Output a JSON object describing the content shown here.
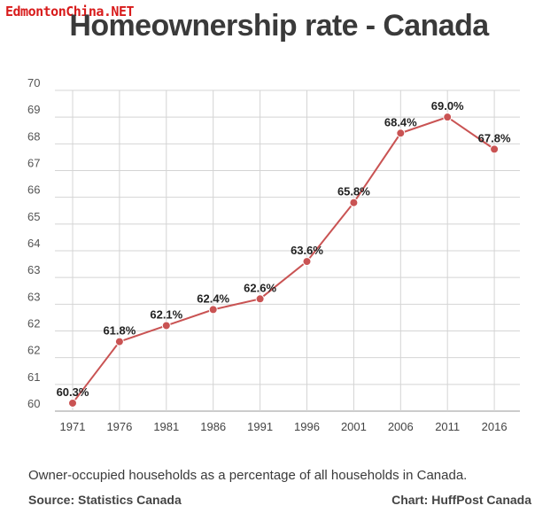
{
  "watermark": "EdmontonChina.NET",
  "chart_data": {
    "type": "line",
    "title": "Homeownership rate - Canada",
    "categories": [
      "1971",
      "1976",
      "1981",
      "1986",
      "1991",
      "1996",
      "2001",
      "2006",
      "2011",
      "2016"
    ],
    "values": [
      60.3,
      61.8,
      62.1,
      62.4,
      62.6,
      63.6,
      65.8,
      68.4,
      69.0,
      67.8
    ],
    "data_labels": [
      "60.3%",
      "61.8%",
      "62.1%",
      "62.4%",
      "62.6%",
      "63.6%",
      "65.8%",
      "68.4%",
      "69.0%",
      "67.8%"
    ],
    "y_ticks": [
      "60",
      "61",
      "62",
      "62",
      "63",
      "63",
      "64",
      "65",
      "66",
      "67",
      "68",
      "69",
      "70"
    ],
    "ylim": [
      60,
      70
    ],
    "xlabel": "",
    "ylabel": "",
    "grid": true,
    "legend": "none",
    "line_color": "#c95353",
    "grid_color": "#d4d4d4"
  },
  "caption": "Owner-occupied households as a percentage of all households in Canada.",
  "source": "Source: Statistics Canada",
  "credit": "Chart: HuffPost Canada"
}
